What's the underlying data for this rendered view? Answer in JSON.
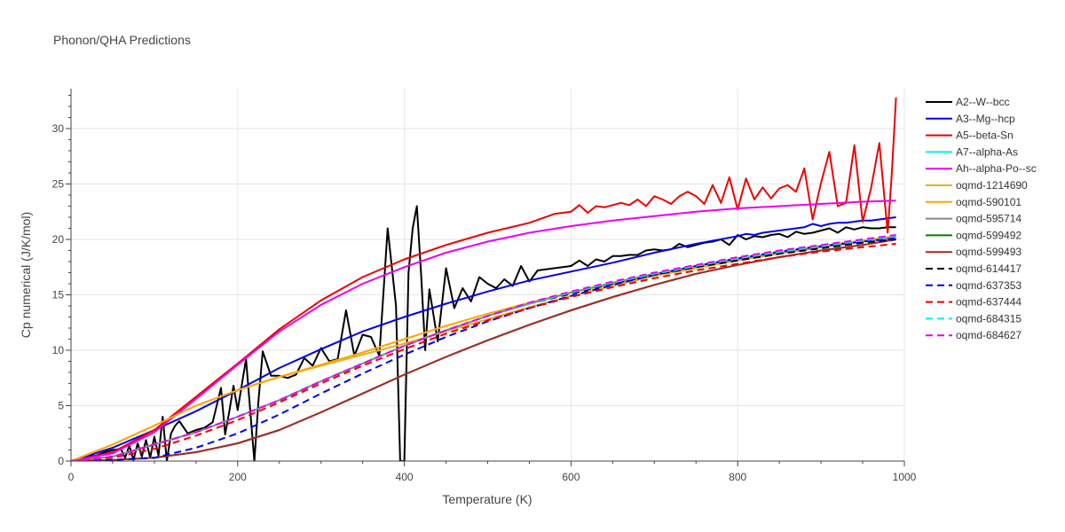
{
  "chart_data": {
    "type": "line",
    "title": "Phonon/QHA Predictions",
    "xlabel": "Temperature (K)",
    "ylabel": "Cp numerical (J/K/mol)",
    "xlim": [
      0,
      1000
    ],
    "ylim": [
      0,
      33.6
    ],
    "xticks": [
      0,
      200,
      400,
      600,
      800,
      1000
    ],
    "yticks": [
      0,
      5,
      10,
      15,
      20,
      25,
      30
    ],
    "grid": true,
    "legend_position": "right",
    "series": [
      {
        "name": "A2--W--bcc",
        "color": "#000000",
        "dash": "solid",
        "x": [
          0,
          10,
          20,
          30,
          40,
          50,
          60,
          65,
          70,
          75,
          80,
          85,
          90,
          95,
          100,
          105,
          110,
          115,
          120,
          125,
          130,
          140,
          150,
          160,
          170,
          180,
          185,
          190,
          195,
          200,
          210,
          220,
          225,
          230,
          240,
          250,
          260,
          270,
          280,
          290,
          300,
          310,
          320,
          330,
          340,
          350,
          360,
          370,
          380,
          390,
          395,
          400,
          405,
          410,
          415,
          420,
          425,
          430,
          440,
          450,
          460,
          470,
          480,
          490,
          500,
          510,
          520,
          530,
          540,
          550,
          560,
          570,
          580,
          590,
          600,
          610,
          620,
          630,
          640,
          650,
          660,
          670,
          680,
          690,
          700,
          710,
          720,
          730,
          740,
          750,
          760,
          770,
          780,
          790,
          800,
          810,
          820,
          830,
          840,
          850,
          860,
          870,
          880,
          890,
          900,
          910,
          920,
          930,
          940,
          950,
          960,
          970,
          980,
          990
        ],
        "y": [
          0,
          0.2,
          0.4,
          0.5,
          0.8,
          1.0,
          1.1,
          0.3,
          1.4,
          0.1,
          1.6,
          0.4,
          1.9,
          0.3,
          2.2,
          0.5,
          4.0,
          0.0,
          2.5,
          3.2,
          3.6,
          2.5,
          2.8,
          3.0,
          3.5,
          6.6,
          2.4,
          4.5,
          6.8,
          4.6,
          9.2,
          0.0,
          5.5,
          9.9,
          7.7,
          7.7,
          7.5,
          7.8,
          9.3,
          8.6,
          10.2,
          9.0,
          9.2,
          13.6,
          9.5,
          11.4,
          11.2,
          9.5,
          21.0,
          14.0,
          0.0,
          0.0,
          17.0,
          21.0,
          23.0,
          17.0,
          10.0,
          15.5,
          10.8,
          17.4,
          13.8,
          15.6,
          14.4,
          16.6,
          16.0,
          15.6,
          16.4,
          15.8,
          17.6,
          16.2,
          17.2,
          17.3,
          17.4,
          17.5,
          17.6,
          18.1,
          17.6,
          18.2,
          18.0,
          18.5,
          18.5,
          18.6,
          18.6,
          19.0,
          19.1,
          19.0,
          19.1,
          19.6,
          19.3,
          19.5,
          19.7,
          19.8,
          20.0,
          19.5,
          20.4,
          20.0,
          20.3,
          20.2,
          20.4,
          20.5,
          20.2,
          20.7,
          20.5,
          20.6,
          20.8,
          21.0,
          20.6,
          21.1,
          20.9,
          21.1,
          21.0,
          21.0,
          21.1,
          21.1
        ]
      },
      {
        "name": "A3--Mg--hcp",
        "color": "#0000ee",
        "dash": "solid",
        "x": [
          0,
          50,
          100,
          150,
          200,
          250,
          300,
          350,
          400,
          450,
          500,
          550,
          600,
          650,
          700,
          750,
          800,
          810,
          820,
          830,
          840,
          850,
          860,
          870,
          880,
          890,
          900,
          910,
          920,
          930,
          940,
          950,
          960,
          970,
          980,
          990
        ],
        "y": [
          0,
          1.2,
          2.8,
          4.5,
          6.4,
          8.4,
          10.1,
          11.7,
          13.0,
          14.2,
          15.3,
          16.3,
          17.1,
          17.9,
          18.8,
          19.6,
          20.3,
          20.5,
          20.4,
          20.6,
          20.7,
          20.8,
          20.9,
          21.0,
          21.1,
          21.4,
          21.2,
          21.4,
          21.5,
          21.5,
          21.6,
          21.7,
          21.7,
          21.8,
          21.9,
          22.0
        ]
      },
      {
        "name": "A5--beta-Sn",
        "color": "#ee0000",
        "dash": "solid",
        "x": [
          0,
          50,
          100,
          150,
          200,
          250,
          300,
          350,
          400,
          450,
          500,
          550,
          580,
          600,
          610,
          620,
          630,
          640,
          650,
          660,
          670,
          680,
          690,
          700,
          710,
          720,
          730,
          740,
          750,
          760,
          770,
          780,
          790,
          800,
          810,
          820,
          830,
          840,
          850,
          860,
          870,
          880,
          890,
          900,
          910,
          920,
          930,
          940,
          950,
          960,
          970,
          980,
          985,
          990
        ],
        "y": [
          0,
          0.8,
          2.8,
          5.8,
          8.8,
          11.9,
          14.5,
          16.6,
          18.2,
          19.5,
          20.6,
          21.5,
          22.3,
          22.5,
          23.1,
          22.4,
          23.0,
          22.9,
          23.1,
          23.3,
          23.1,
          23.6,
          23.0,
          23.9,
          23.6,
          23.2,
          23.9,
          24.3,
          23.9,
          23.2,
          24.9,
          23.3,
          25.6,
          22.7,
          25.5,
          23.6,
          24.7,
          23.7,
          24.6,
          24.9,
          24.3,
          26.4,
          21.8,
          25.1,
          27.9,
          23.0,
          23.3,
          28.5,
          21.6,
          24.6,
          28.7,
          20.6,
          26.0,
          32.8
        ]
      },
      {
        "name": "A7--alpha-As",
        "color": "#00eeee",
        "dash": "solid",
        "x": [
          0,
          50,
          100,
          150,
          200,
          250,
          300,
          350,
          400,
          450,
          500,
          550,
          600,
          650,
          700,
          750,
          800,
          850,
          900,
          950,
          990
        ],
        "y": [
          0,
          0.4,
          1.5,
          2.6,
          4.0,
          5.5,
          7.2,
          8.8,
          10.4,
          11.8,
          13.1,
          14.2,
          15.2,
          16.1,
          16.9,
          17.6,
          18.3,
          18.8,
          19.3,
          19.8,
          20.2
        ]
      },
      {
        "name": "Ah--alpha-Po--sc",
        "color": "#ee00ee",
        "dash": "solid",
        "x": [
          0,
          50,
          100,
          150,
          200,
          250,
          300,
          350,
          400,
          450,
          500,
          550,
          600,
          650,
          700,
          750,
          800,
          850,
          900,
          950,
          990
        ],
        "y": [
          0,
          0.7,
          2.6,
          5.6,
          8.7,
          11.7,
          14.1,
          16.0,
          17.5,
          18.8,
          19.8,
          20.6,
          21.2,
          21.7,
          22.1,
          22.5,
          22.8,
          23.0,
          23.2,
          23.4,
          23.5
        ]
      },
      {
        "name": "oqmd-1214690",
        "color": "#e8b020",
        "dash": "solid",
        "x": [
          0,
          50,
          100,
          150,
          200,
          250,
          300,
          350,
          400,
          450,
          500,
          550,
          600,
          650,
          700,
          750,
          800,
          850,
          900,
          950,
          990
        ],
        "y": [
          0,
          1.5,
          3.2,
          5.0,
          6.4,
          7.6,
          8.6,
          9.6,
          10.6,
          11.7,
          12.8,
          13.9,
          14.9,
          15.8,
          16.7,
          17.4,
          18.1,
          18.7,
          19.3,
          19.8,
          20.2
        ]
      },
      {
        "name": "oqmd-590101",
        "color": "#ffa500",
        "dash": "solid",
        "x": [
          0,
          50,
          100,
          150,
          200,
          250,
          300,
          350,
          400,
          450,
          500,
          550,
          600,
          650,
          700,
          750,
          800,
          850,
          900,
          950,
          990
        ],
        "y": [
          0,
          1.5,
          3.2,
          5.0,
          6.4,
          7.6,
          8.7,
          9.8,
          11.0,
          12.2,
          13.3,
          14.3,
          15.2,
          16.0,
          16.8,
          17.5,
          18.2,
          18.8,
          19.4,
          19.9,
          20.3
        ]
      },
      {
        "name": "oqmd-595714",
        "color": "#888888",
        "dash": "solid",
        "x": [
          0,
          50,
          100,
          150,
          200,
          250,
          300,
          350,
          400,
          450,
          500,
          550,
          600,
          650,
          700,
          750,
          800,
          850,
          900,
          950,
          990
        ],
        "y": [
          0,
          0.4,
          1.5,
          2.6,
          4.0,
          5.5,
          7.2,
          8.8,
          10.4,
          11.8,
          13.1,
          14.2,
          15.2,
          16.1,
          16.9,
          17.6,
          18.2,
          18.8,
          19.3,
          19.8,
          20.2
        ]
      },
      {
        "name": "oqmd-599492",
        "color": "#008000",
        "dash": "solid",
        "x": [
          0,
          50,
          100,
          150,
          200,
          250,
          300,
          350,
          400,
          450,
          500,
          550,
          600,
          650,
          700,
          750,
          800,
          850,
          900,
          950,
          990
        ],
        "y": [
          0,
          0.1,
          0.3,
          0.8,
          1.6,
          2.8,
          4.4,
          6.1,
          7.8,
          9.4,
          10.9,
          12.3,
          13.6,
          14.8,
          15.9,
          16.9,
          17.7,
          18.4,
          19.0,
          19.5,
          20.0
        ]
      },
      {
        "name": "oqmd-599493",
        "color": "#a52a2a",
        "dash": "solid",
        "x": [
          0,
          50,
          100,
          150,
          200,
          250,
          300,
          350,
          400,
          450,
          500,
          550,
          600,
          650,
          700,
          750,
          800,
          850,
          900,
          950,
          990
        ],
        "y": [
          0,
          0.1,
          0.3,
          0.8,
          1.6,
          2.8,
          4.4,
          6.1,
          7.8,
          9.4,
          10.9,
          12.3,
          13.6,
          14.8,
          15.9,
          16.9,
          17.7,
          18.4,
          19.0,
          19.5,
          20.0
        ]
      },
      {
        "name": "oqmd-614417",
        "color": "#000000",
        "dash": "dash",
        "x": [
          0,
          50,
          100,
          150,
          200,
          250,
          300,
          350,
          400,
          450,
          500,
          550,
          600,
          650,
          700,
          750,
          800,
          850,
          900,
          950,
          990
        ],
        "y": [
          0,
          0.4,
          1.5,
          2.6,
          4.0,
          5.5,
          7.2,
          8.8,
          10.4,
          11.8,
          13.1,
          14.2,
          15.1,
          16.0,
          16.8,
          17.5,
          18.1,
          18.7,
          19.2,
          19.7,
          20.0
        ]
      },
      {
        "name": "oqmd-637353",
        "color": "#0000ee",
        "dash": "dash",
        "x": [
          0,
          50,
          100,
          150,
          200,
          250,
          300,
          350,
          400,
          450,
          500,
          550,
          600,
          650,
          700,
          750,
          800,
          850,
          900,
          950,
          990
        ],
        "y": [
          0,
          0.1,
          0.3,
          1.2,
          2.5,
          4.2,
          6.1,
          7.9,
          9.6,
          11.2,
          12.6,
          13.8,
          14.9,
          15.9,
          16.8,
          17.6,
          18.3,
          18.9,
          19.4,
          19.8,
          20.1
        ]
      },
      {
        "name": "oqmd-637444",
        "color": "#ee0000",
        "dash": "dash",
        "x": [
          0,
          50,
          100,
          150,
          200,
          250,
          300,
          350,
          400,
          450,
          500,
          550,
          600,
          650,
          700,
          750,
          800,
          850,
          900,
          950,
          990
        ],
        "y": [
          0,
          0.3,
          1.1,
          2.3,
          3.7,
          5.3,
          7.0,
          8.6,
          10.1,
          11.5,
          12.7,
          13.8,
          14.8,
          15.7,
          16.5,
          17.2,
          17.8,
          18.4,
          18.9,
          19.3,
          19.6
        ]
      },
      {
        "name": "oqmd-684315",
        "color": "#00eeee",
        "dash": "dash",
        "x": [
          0,
          50,
          100,
          150,
          200,
          250,
          300,
          350,
          400,
          450,
          500,
          550,
          600,
          650,
          700,
          750,
          800,
          850,
          900,
          950,
          990
        ],
        "y": [
          0,
          0.4,
          1.5,
          2.6,
          4.0,
          5.5,
          7.2,
          8.8,
          10.4,
          11.8,
          13.1,
          14.2,
          15.2,
          16.1,
          16.9,
          17.6,
          18.3,
          18.9,
          19.4,
          19.9,
          20.3
        ]
      },
      {
        "name": "oqmd-684627",
        "color": "#ee00ee",
        "dash": "dash",
        "x": [
          0,
          50,
          100,
          150,
          200,
          250,
          300,
          350,
          400,
          450,
          500,
          550,
          600,
          650,
          700,
          750,
          800,
          850,
          900,
          950,
          990
        ],
        "y": [
          0,
          0.4,
          1.5,
          2.6,
          4.0,
          5.5,
          7.2,
          8.8,
          10.4,
          11.8,
          13.1,
          14.3,
          15.3,
          16.2,
          17.0,
          17.7,
          18.4,
          19.0,
          19.5,
          20.0,
          20.4
        ]
      }
    ]
  }
}
